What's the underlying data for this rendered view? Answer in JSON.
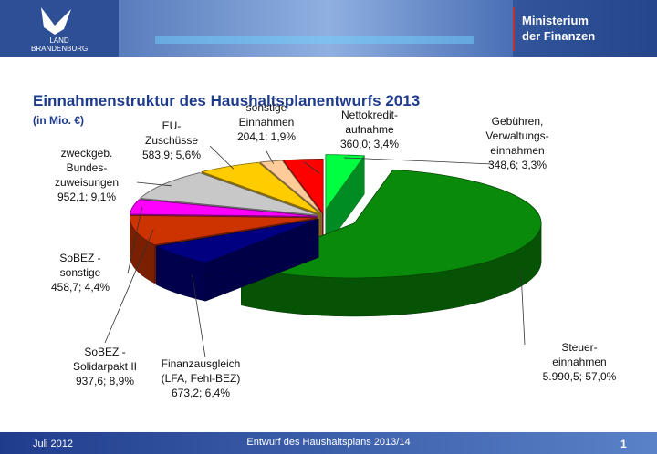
{
  "header": {
    "logo": "LAND\nBRANDENBURG",
    "ministry": "Ministerium\nder Finanzen"
  },
  "chart_data": {
    "type": "pie",
    "title": "Einnahmenstruktur des Haushaltsplanentwurfs 2013",
    "subtitle": "(in Mio. €)",
    "categories": [
      "Gebühren,\nVerwaltungs-\neinnahmen",
      "Steuer-\neinnahmen",
      "Finanzausgleich\n(LFA, Fehl-BEZ)",
      "SoBEZ -\nSolidarpakt II",
      "SoBEZ -\nsonstige",
      "zweckgeb.\nBundes-\nzuweisungen",
      "EU-\nZuschüsse",
      "sonstige\nEinnahmen",
      "Nettokredit-\naufnahme"
    ],
    "values": [
      348.6,
      5990.5,
      673.2,
      937.6,
      458.7,
      952.1,
      583.9,
      204.1,
      360.0
    ],
    "value_labels": [
      "348,6; 3,3%",
      "5.990,5; 57,0%",
      "673,2; 6,4%",
      "937,6; 8,9%",
      "458,7; 4,4%",
      "952,1; 9,1%",
      "583,9; 5,6%",
      "204,1; 1,9%",
      "360,0; 3,4%"
    ],
    "colors": [
      "#00ff40",
      "#0a8a0a",
      "#000080",
      "#cc3300",
      "#ff00ff",
      "#c8c8c8",
      "#ffcc00",
      "#ffcc99",
      "#ff0000"
    ]
  },
  "footer": {
    "date": "Juli 2012",
    "center": "Entwurf des Haushaltsplans 2013/14",
    "page": "1"
  }
}
